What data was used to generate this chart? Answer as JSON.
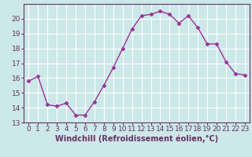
{
  "x": [
    0,
    1,
    2,
    3,
    4,
    5,
    6,
    7,
    8,
    9,
    10,
    11,
    12,
    13,
    14,
    15,
    16,
    17,
    18,
    19,
    20,
    21,
    22,
    23
  ],
  "y": [
    15.8,
    16.1,
    14.2,
    14.1,
    14.3,
    13.5,
    13.5,
    14.4,
    15.5,
    16.7,
    18.0,
    19.3,
    20.2,
    20.3,
    20.5,
    20.3,
    19.7,
    20.2,
    19.4,
    18.3,
    18.3,
    17.1,
    16.3,
    16.2
  ],
  "line_color": "#993399",
  "marker": "D",
  "marker_size": 2.5,
  "bg_color": "#cce8e8",
  "grid_color": "#ffffff",
  "xlabel": "Windchill (Refroidissement éolien,°C)",
  "ylim": [
    13,
    21
  ],
  "xlim_min": -0.5,
  "xlim_max": 23.5,
  "yticks": [
    13,
    14,
    15,
    16,
    17,
    18,
    19,
    20
  ],
  "xticks": [
    0,
    1,
    2,
    3,
    4,
    5,
    6,
    7,
    8,
    9,
    10,
    11,
    12,
    13,
    14,
    15,
    16,
    17,
    18,
    19,
    20,
    21,
    22,
    23
  ],
  "xtick_labels": [
    "0",
    "1",
    "2",
    "3",
    "4",
    "5",
    "6",
    "7",
    "8",
    "9",
    "10",
    "11",
    "12",
    "13",
    "14",
    "15",
    "16",
    "17",
    "18",
    "19",
    "20",
    "21",
    "22",
    "23"
  ],
  "tick_fontsize": 6.5,
  "xlabel_fontsize": 7.0,
  "axis_color": "#663366",
  "linewidth": 1.0
}
